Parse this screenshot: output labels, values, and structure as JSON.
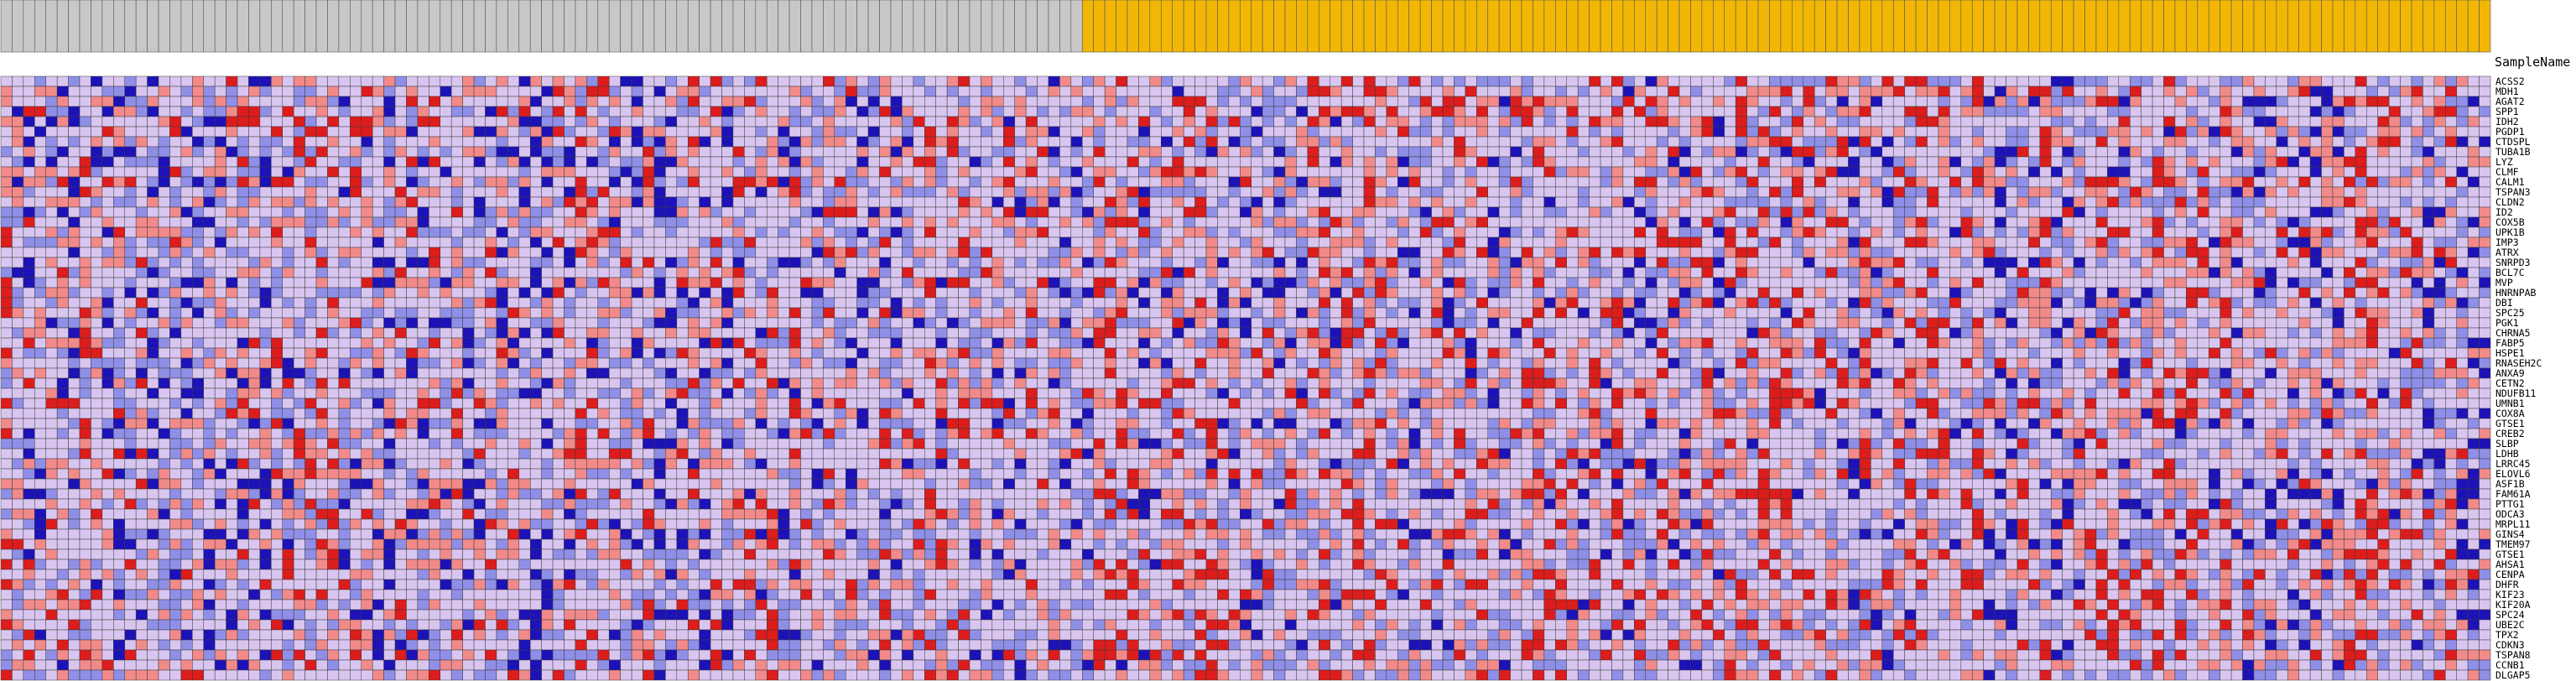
{
  "colors": {
    "high": "#dd1c1c",
    "mid_high": "#f28a8a",
    "neutral": "#d9c6f0",
    "mid_low": "#8f8fe8",
    "low": "#1c12b8",
    "group_a_header": "#c8c8c8",
    "group_b_header": "#f2b705",
    "grid": "#3a3a3a"
  },
  "chart_data": {
    "type": "heatmap",
    "title": "",
    "column_header_label": "SampleName",
    "sample_groups": [
      {
        "color": "group_a_header",
        "count": 96
      },
      {
        "color": "group_b_header",
        "count": 125
      }
    ],
    "row_labels": [
      "ACSS2",
      "MDH1",
      "AGAT2",
      "SPP1",
      "IDH2",
      "PGDP1",
      "CTDSPL",
      "TUBA1B",
      "LYZ",
      "CLMF",
      "CALM1",
      "TSPAN3",
      "CLDN2",
      "ID2",
      "COX5B",
      "UPK1B",
      "IMP3",
      "ATRX",
      "SNRPD3",
      "BCL7C",
      "MVP",
      "HNRNPAB",
      "DBI",
      "SPC25",
      "PGK1",
      "CHRNA5",
      "FABP5",
      "HSPE1",
      "RNASEH2C",
      "ANXA9",
      "CETN2",
      "NDUFB11",
      "UMNB1",
      "COX8A",
      "GTSE1",
      "CREB2",
      "SLBP",
      "LDHB",
      "LRRC45",
      "ELOVL6",
      "ASF1B",
      "FAM61A",
      "PTTG1",
      "ODCA3",
      "MRPL11",
      "GINS4",
      "TMEM97",
      "GTSE1",
      "AHSA1",
      "CENPA",
      "DHFR",
      "KIF23",
      "KIF20A",
      "SPC24",
      "UBE2C",
      "TPX2",
      "CDKN3",
      "TSPAN8",
      "CCNB1",
      "DLGAP5"
    ],
    "value_range": [
      -3,
      3
    ],
    "color_scale": "blue-white-red"
  }
}
